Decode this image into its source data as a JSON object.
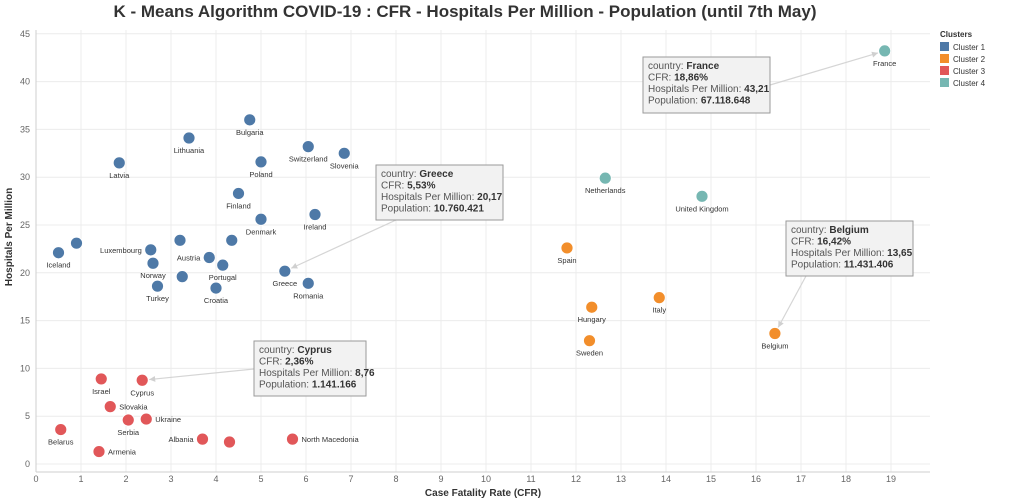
{
  "chart_data": {
    "type": "scatter",
    "title": "K - Means Algorithm COVID-19 : CFR - Hospitals Per Million - Population (until 7th May)",
    "xlabel": "Case Fatality Rate (CFR)",
    "ylabel": "Hospitals Per Million",
    "xlim": [
      0,
      20
    ],
    "ylim": [
      -0.5,
      46
    ],
    "x_ticks": [
      0,
      1,
      2,
      3,
      4,
      5,
      6,
      7,
      8,
      9,
      10,
      11,
      12,
      13,
      14,
      15,
      16,
      17,
      18,
      19
    ],
    "y_ticks": [
      0,
      5,
      10,
      15,
      20,
      25,
      30,
      35,
      40,
      45
    ],
    "grid": true,
    "legend": {
      "title": "Clusters",
      "placement": "top-right",
      "entries": [
        {
          "name": "Cluster 1",
          "color": "#4e79a7"
        },
        {
          "name": "Cluster 2",
          "color": "#f28e2b"
        },
        {
          "name": "Cluster 3",
          "color": "#e15759"
        },
        {
          "name": "Cluster 4",
          "color": "#76b7b2"
        }
      ]
    },
    "points": [
      {
        "country": "Bulgaria",
        "x": 4.75,
        "y": 36.0,
        "cluster": 1,
        "label_pos": "below"
      },
      {
        "country": "Lithuania",
        "x": 3.4,
        "y": 34.1,
        "cluster": 1,
        "label_pos": "below"
      },
      {
        "country": "Switzerland",
        "x": 6.05,
        "y": 33.2,
        "cluster": 1,
        "label_pos": "below"
      },
      {
        "country": "Slovenia",
        "x": 6.85,
        "y": 32.5,
        "cluster": 1,
        "label_pos": "below"
      },
      {
        "country": "Poland",
        "x": 5.0,
        "y": 31.6,
        "cluster": 1,
        "label_pos": "below"
      },
      {
        "country": "Latvia",
        "x": 1.85,
        "y": 31.5,
        "cluster": 1,
        "label_pos": "below"
      },
      {
        "country": "Finland",
        "x": 4.5,
        "y": 28.3,
        "cluster": 1,
        "label_pos": "below"
      },
      {
        "country": "Ireland",
        "x": 6.2,
        "y": 26.1,
        "cluster": 1,
        "label_pos": "below"
      },
      {
        "country": "Denmark",
        "x": 5.0,
        "y": 25.6,
        "cluster": 1,
        "label_pos": "below"
      },
      {
        "country": "Iceland",
        "x": 0.5,
        "y": 22.1,
        "cluster": 1,
        "label_pos": "below"
      },
      {
        "country": "",
        "x": 0.9,
        "y": 23.1,
        "cluster": 1,
        "label_pos": "none"
      },
      {
        "country": "",
        "x": 4.35,
        "y": 23.4,
        "cluster": 1,
        "label_pos": "none"
      },
      {
        "country": "Luxembourg",
        "x": 2.55,
        "y": 22.4,
        "cluster": 1,
        "label_pos": "left"
      },
      {
        "country": "",
        "x": 3.2,
        "y": 23.4,
        "cluster": 1,
        "label_pos": "none"
      },
      {
        "country": "Austria",
        "x": 3.85,
        "y": 21.6,
        "cluster": 1,
        "label_pos": "left"
      },
      {
        "country": "Norway",
        "x": 2.6,
        "y": 21.0,
        "cluster": 1,
        "label_pos": "below"
      },
      {
        "country": "Portugal",
        "x": 4.15,
        "y": 20.8,
        "cluster": 1,
        "label_pos": "below"
      },
      {
        "country": "Greece",
        "x": 5.53,
        "y": 20.17,
        "cluster": 1,
        "label_pos": "below"
      },
      {
        "country": "",
        "x": 3.25,
        "y": 19.6,
        "cluster": 1,
        "label_pos": "none"
      },
      {
        "country": "Romania",
        "x": 6.05,
        "y": 18.9,
        "cluster": 1,
        "label_pos": "below"
      },
      {
        "country": "Turkey",
        "x": 2.7,
        "y": 18.6,
        "cluster": 1,
        "label_pos": "below"
      },
      {
        "country": "Croatia",
        "x": 4.0,
        "y": 18.4,
        "cluster": 1,
        "label_pos": "below"
      },
      {
        "country": "France",
        "x": 18.86,
        "y": 43.21,
        "cluster": 4,
        "label_pos": "below"
      },
      {
        "country": "Netherlands",
        "x": 12.65,
        "y": 29.9,
        "cluster": 4,
        "label_pos": "below"
      },
      {
        "country": "United Kingdom",
        "x": 14.8,
        "y": 28.0,
        "cluster": 4,
        "label_pos": "below"
      },
      {
        "country": "Spain",
        "x": 11.8,
        "y": 22.6,
        "cluster": 2,
        "label_pos": "below"
      },
      {
        "country": "Italy",
        "x": 13.85,
        "y": 17.4,
        "cluster": 2,
        "label_pos": "below"
      },
      {
        "country": "Hungary",
        "x": 12.35,
        "y": 16.4,
        "cluster": 2,
        "label_pos": "below"
      },
      {
        "country": "Belgium",
        "x": 16.42,
        "y": 13.65,
        "cluster": 2,
        "label_pos": "below"
      },
      {
        "country": "Sweden",
        "x": 12.3,
        "y": 12.9,
        "cluster": 2,
        "label_pos": "below"
      },
      {
        "country": "Israel",
        "x": 1.45,
        "y": 8.9,
        "cluster": 3,
        "label_pos": "below"
      },
      {
        "country": "Cyprus",
        "x": 2.36,
        "y": 8.76,
        "cluster": 3,
        "label_pos": "below"
      },
      {
        "country": "Slovakia",
        "x": 1.65,
        "y": 6.0,
        "cluster": 3,
        "label_pos": "right"
      },
      {
        "country": "Serbia",
        "x": 2.05,
        "y": 4.6,
        "cluster": 3,
        "label_pos": "below"
      },
      {
        "country": "Ukraine",
        "x": 2.45,
        "y": 4.7,
        "cluster": 3,
        "label_pos": "right"
      },
      {
        "country": "Belarus",
        "x": 0.55,
        "y": 3.6,
        "cluster": 3,
        "label_pos": "below"
      },
      {
        "country": "Albania",
        "x": 3.7,
        "y": 2.6,
        "cluster": 3,
        "label_pos": "left"
      },
      {
        "country": "",
        "x": 4.3,
        "y": 2.3,
        "cluster": 3,
        "label_pos": "none"
      },
      {
        "country": "North Macedonia",
        "x": 5.7,
        "y": 2.6,
        "cluster": 3,
        "label_pos": "right"
      },
      {
        "country": "Armenia",
        "x": 1.4,
        "y": 1.3,
        "cluster": 3,
        "label_pos": "right"
      }
    ],
    "tooltips": [
      {
        "target": "France",
        "country": "France",
        "cfr": "18,86%",
        "hpm": "43,21",
        "population": "67.118.648",
        "anchor": "left"
      },
      {
        "target": "Greece",
        "country": "Greece",
        "cfr": "5,53%",
        "hpm": "20,17",
        "population": "10.760.421",
        "anchor": "right"
      },
      {
        "target": "Belgium",
        "country": "Belgium",
        "cfr": "16,42%",
        "hpm": "13,65",
        "population": "11.431.406",
        "anchor": "right"
      },
      {
        "target": "Cyprus",
        "country": "Cyprus",
        "cfr": "2,36%",
        "hpm": "8,76",
        "population": "1.141.166",
        "anchor": "right"
      }
    ],
    "tooltip_labels": {
      "country": "country:",
      "cfr": "CFR:",
      "hpm": "Hospitals Per Million:",
      "population": "Population:"
    }
  }
}
